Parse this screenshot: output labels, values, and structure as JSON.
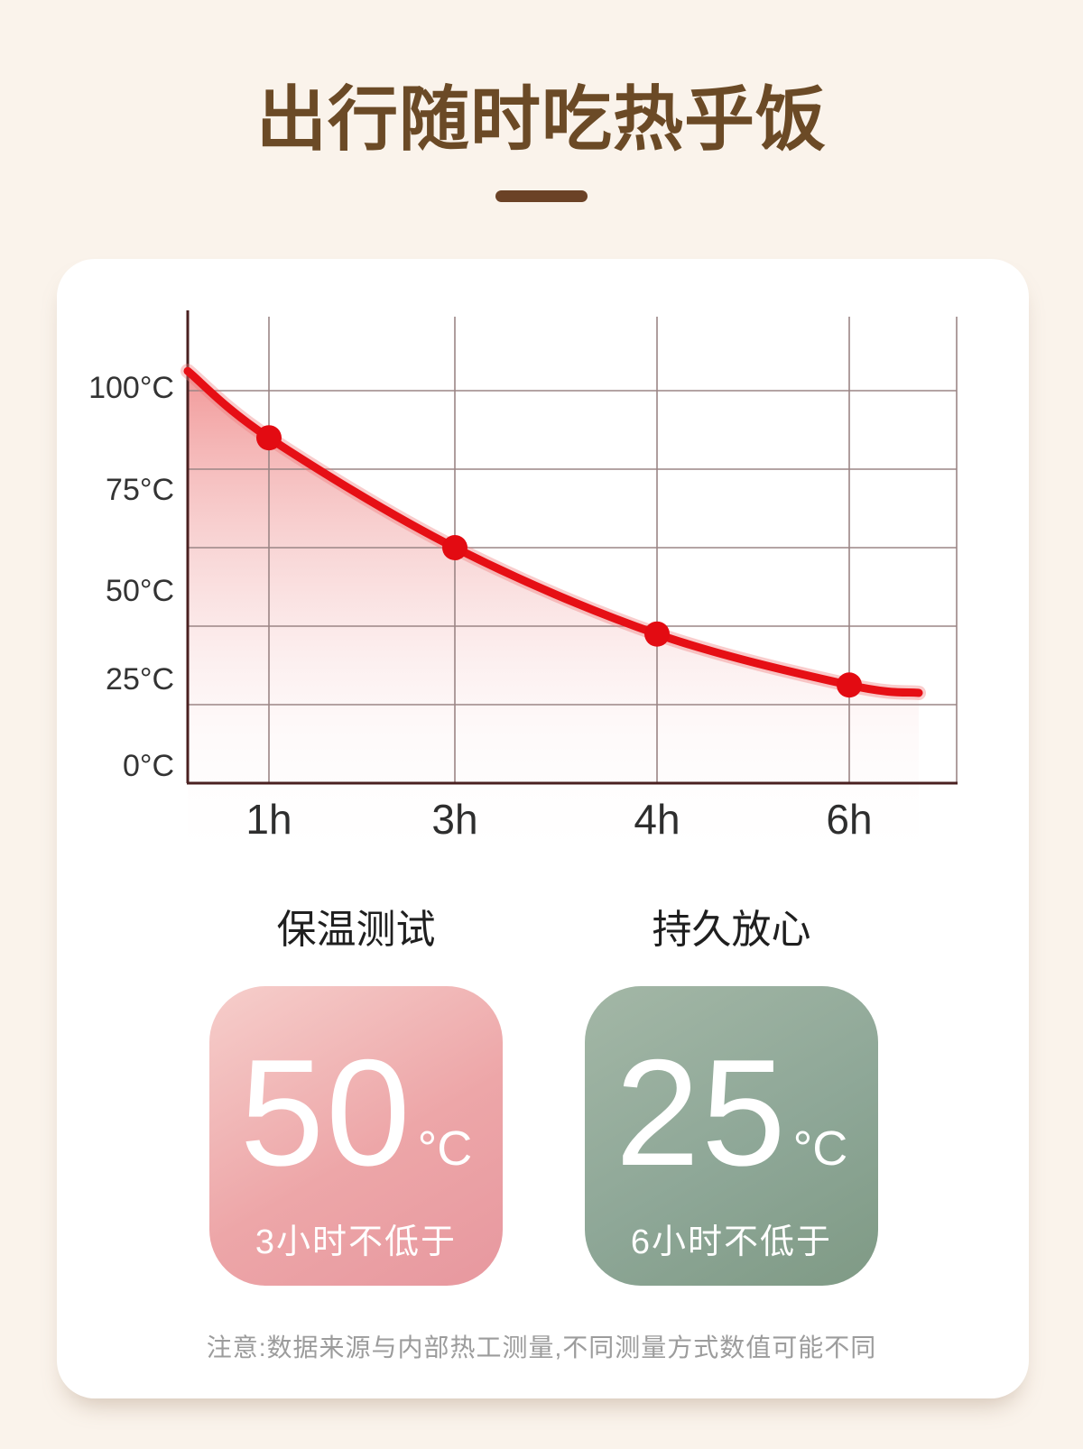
{
  "page": {
    "background": "#faf3eb"
  },
  "header": {
    "title": "出行随时吃热乎饭"
  },
  "chart_data": {
    "type": "line",
    "categories": [
      "1h",
      "3h",
      "4h",
      "6h"
    ],
    "values": [
      88,
      60,
      38,
      25
    ],
    "curve_start_value": 105,
    "curve_end_value": 23,
    "y_tick_labels": [
      "100°C",
      "75°C",
      "50°C",
      "25°C",
      "0°C"
    ],
    "ylim": [
      0,
      120
    ],
    "grid": true,
    "line_color": "#e60f15",
    "dot_color": "#e30b12",
    "grid_color": "#9b8585",
    "axis_color": "#4a2020",
    "area_top_color": "#e85454",
    "x_tick_color": "#2e2e2e",
    "y_tick_color": "#333333"
  },
  "cards": [
    {
      "label": "保温测试",
      "value": "50",
      "unit": "°C",
      "desc": "3小时不低于",
      "bg_start": "#f6cecb",
      "bg_mid": "#eda6a8",
      "bg_end": "#e7989f"
    },
    {
      "label": "持久放心",
      "value": "25",
      "unit": "°C",
      "desc": "6小时不低于",
      "bg_start": "#a3b7a6",
      "bg_mid": "#8ea797",
      "bg_end": "#7f9a85"
    }
  ],
  "footnote": "注意:数据来源与内部热工测量,不同测量方式数值可能不同"
}
